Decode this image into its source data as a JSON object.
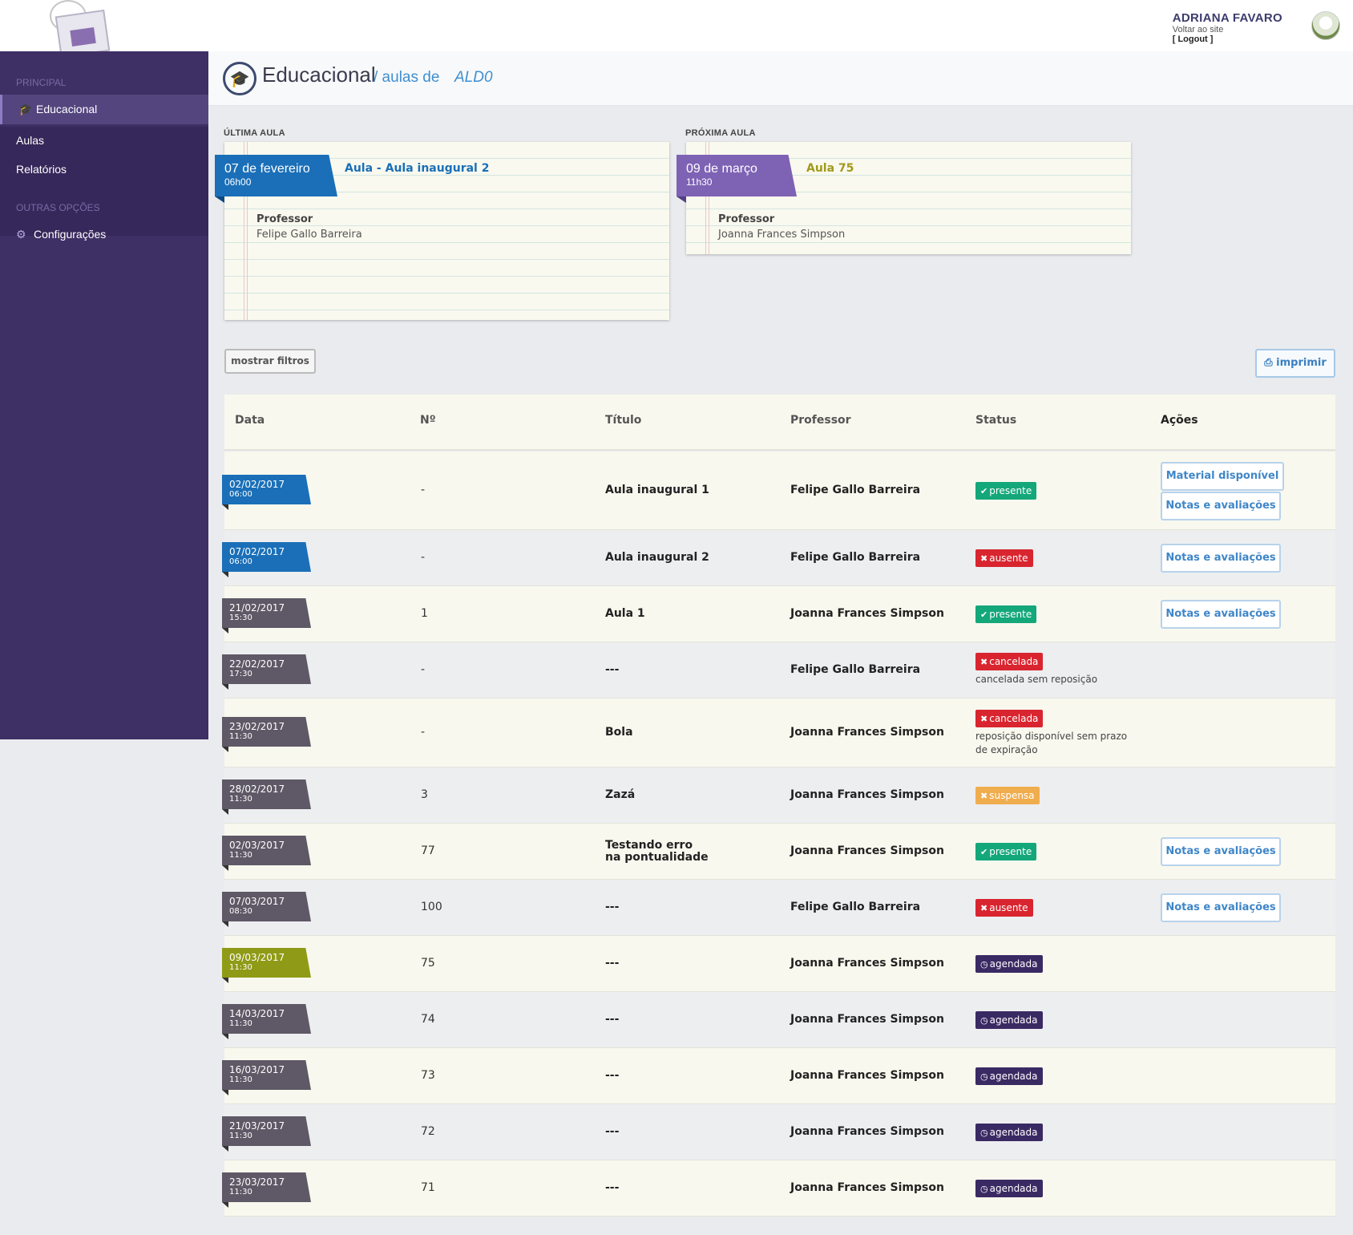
{
  "header": {
    "user_name": "ADRIANA FAVARO",
    "back_link": "Voltar ao site",
    "logout": "[ Logout ]"
  },
  "sidebar": {
    "section_main": "PRINCIPAL",
    "items": [
      {
        "label": "Educacional",
        "icon": "graduation-cap-icon"
      },
      {
        "label": "Aulas"
      },
      {
        "label": "Relatórios"
      }
    ],
    "section_other": "OUTRAS OPÇÕES",
    "settings_label": "Configurações",
    "settings_icon": "gear-icon"
  },
  "page": {
    "title": "Educacional",
    "subtitle": "/ aulas de",
    "student": "ALD0"
  },
  "last_class": {
    "label": "ÚLTIMA AULA",
    "date": "07 de fevereiro",
    "time": "06h00",
    "title": "Aula - Aula inaugural 2",
    "professor_label": "Professor",
    "professor": "Felipe Gallo Barreira"
  },
  "next_class": {
    "label": "PRÓXIMA AULA",
    "date": "09 de março",
    "time": "11h30",
    "title": "Aula 75",
    "professor_label": "Professor",
    "professor": "Joanna Frances Simpson"
  },
  "toolbar": {
    "filter_label": "mostrar filtros",
    "print_label": "imprimir",
    "print_icon": "printer-icon"
  },
  "table": {
    "columns": [
      "Data",
      "Nº",
      "Título",
      "Professor",
      "Status",
      "Ações"
    ],
    "rows": [
      {
        "date": "02/02/2017",
        "time": "06:00",
        "num": "-",
        "title": "Aula inaugural 1",
        "professor": "Felipe Gallo Barreira",
        "status": "presente",
        "actions": [
          "Material disponível",
          "Notas e avaliações"
        ]
      },
      {
        "date": "07/02/2017",
        "time": "06:00",
        "num": "-",
        "title": "Aula inaugural 2",
        "professor": "Felipe Gallo Barreira",
        "status": "ausente",
        "actions": [
          "Notas e avaliações"
        ]
      },
      {
        "date": "21/02/2017",
        "time": "15:30",
        "num": "1",
        "title": "Aula 1",
        "professor": "Joanna Frances Simpson",
        "status": "presente",
        "actions": [
          "Notas e avaliações"
        ]
      },
      {
        "date": "22/02/2017",
        "time": "17:30",
        "num": "-",
        "title": "---",
        "professor": "Felipe Gallo Barreira",
        "status": "cancelada",
        "note": "cancelada sem reposição"
      },
      {
        "date": "23/02/2017",
        "time": "11:30",
        "num": "-",
        "title": "Bola",
        "professor": "Joanna Frances Simpson",
        "status": "cancelada",
        "note": "reposição disponível sem prazo de expiração"
      },
      {
        "date": "28/02/2017",
        "time": "11:30",
        "num": "3",
        "title": "Zazá",
        "professor": "Joanna Frances Simpson",
        "status": "suspensa"
      },
      {
        "date": "02/03/2017",
        "time": "11:30",
        "num": "77",
        "title": "Testando erro na pontualidade",
        "professor": "Joanna Frances Simpson",
        "status": "presente",
        "actions": [
          "Notas e avaliações"
        ]
      },
      {
        "date": "07/03/2017",
        "time": "08:30",
        "num": "100",
        "title": "---",
        "professor": "Felipe Gallo Barreira",
        "status": "ausente",
        "actions": [
          "Notas e avaliações"
        ]
      },
      {
        "date": "09/03/2017",
        "time": "11:30",
        "num": "75",
        "title": "---",
        "professor": "Joanna Frances Simpson",
        "status": "agendada"
      },
      {
        "date": "14/03/2017",
        "time": "11:30",
        "num": "74",
        "title": "---",
        "professor": "Joanna Frances Simpson",
        "status": "agendada"
      },
      {
        "date": "16/03/2017",
        "time": "11:30",
        "num": "73",
        "title": "---",
        "professor": "Joanna Frances Simpson",
        "status": "agendada"
      },
      {
        "date": "21/03/2017",
        "time": "11:30",
        "num": "72",
        "title": "---",
        "professor": "Joanna Frances Simpson",
        "status": "agendada"
      },
      {
        "date": "23/03/2017",
        "time": "11:30",
        "num": "71",
        "title": "---",
        "professor": "Joanna Frances Simpson",
        "status": "agendada"
      }
    ]
  },
  "colors": {
    "sidebar": "#3e2f64",
    "ribbon_past_blue": "#1a6fb8",
    "ribbon_grey": "#5f5866",
    "ribbon_next_olive": "#8f9a16",
    "next_card_ribbon": "#7e62b4",
    "presente": "#14a77a",
    "ausente": "#d9252f",
    "cancelada": "#d9252f",
    "suspensa": "#f0ad4e",
    "agendada": "#3a2a63"
  }
}
